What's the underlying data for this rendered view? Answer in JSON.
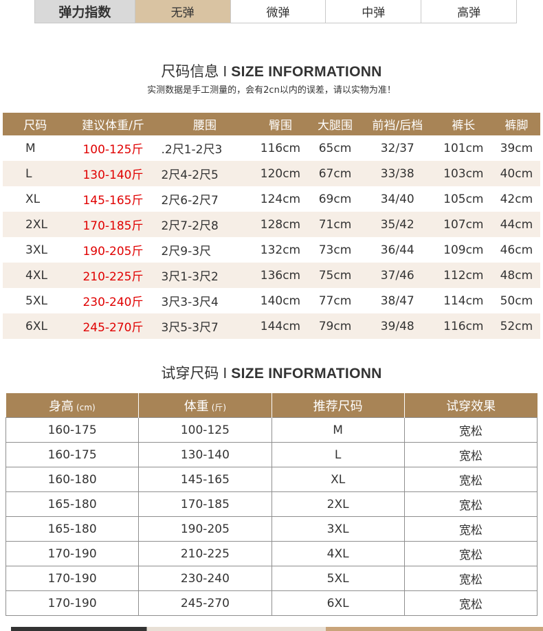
{
  "elasticity": {
    "label": "弹力指数",
    "options": [
      "无弹",
      "微弹",
      "中弹",
      "高弹"
    ],
    "selected": "无弹"
  },
  "size_section": {
    "title_cn": "尺码信息",
    "separator": "I",
    "title_en": "SIZE INFORMATIONN",
    "note": "实测数据是手工测量的，会有2cn以内的误差，请以实物为准！"
  },
  "size_table": {
    "headers": [
      "尺码",
      "建议体重/斤",
      "腰围",
      "臀围",
      "大腿围",
      "前裆/后档",
      "裤长",
      "裤脚"
    ],
    "rows": [
      [
        "M",
        "100-125斤",
        ".2尺1-2尺3",
        "116cm",
        "65cm",
        "32/37",
        "101cm",
        "39cm"
      ],
      [
        "L",
        "130-140斤",
        "2尺4-2尺5",
        "120cm",
        "67cm",
        "33/38",
        "103cm",
        "40cm"
      ],
      [
        "XL",
        "145-165斤",
        "2尺6-2尺7",
        "124cm",
        "69cm",
        "34/40",
        "105cm",
        "42cm"
      ],
      [
        "2XL",
        "170-185斤",
        "2尺7-2尺8",
        "128cm",
        "71cm",
        "35/42",
        "107cm",
        "44cm"
      ],
      [
        "3XL",
        "190-205斤",
        "2尺9-3尺",
        "132cm",
        "73cm",
        "36/44",
        "109cm",
        "46cm"
      ],
      [
        "4XL",
        "210-225斤",
        "3尺1-3尺2",
        "136cm",
        "75cm",
        "37/46",
        "112cm",
        "48cm"
      ],
      [
        "5XL",
        "230-240斤",
        "3尺3-3尺4",
        "140cm",
        "77cm",
        "38/47",
        "114cm",
        "50cm"
      ],
      [
        "6XL",
        "245-270斤",
        "3尺5-3尺7",
        "144cm",
        "79cm",
        "39/48",
        "116cm",
        "52cm"
      ]
    ]
  },
  "fit_section": {
    "title_cn": "试穿尺码",
    "separator": "I",
    "title_en": "SIZE INFORMATIONN"
  },
  "fit_table": {
    "headers": [
      {
        "label": "身高",
        "unit": "(cm)"
      },
      {
        "label": "体重",
        "unit": "(斤)"
      },
      {
        "label": "推荐尺码",
        "unit": ""
      },
      {
        "label": "试穿效果",
        "unit": ""
      }
    ],
    "rows": [
      [
        "160-175",
        "100-125",
        "M",
        "宽松"
      ],
      [
        "160-175",
        "130-140",
        "L",
        "宽松"
      ],
      [
        "160-180",
        "145-165",
        "XL",
        "宽松"
      ],
      [
        "165-180",
        "170-185",
        "2XL",
        "宽松"
      ],
      [
        "165-180",
        "190-205",
        "3XL",
        "宽松"
      ],
      [
        "170-190",
        "210-225",
        "4XL",
        "宽松"
      ],
      [
        "170-190",
        "230-240",
        "5XL",
        "宽松"
      ],
      [
        "170-190",
        "245-270",
        "6XL",
        "宽松"
      ]
    ]
  },
  "colors": {
    "header_brown": "#a88456",
    "selected_tan": "#d9c3a2",
    "weight_red": "#e00000",
    "alt_row": "#f6eee6"
  }
}
